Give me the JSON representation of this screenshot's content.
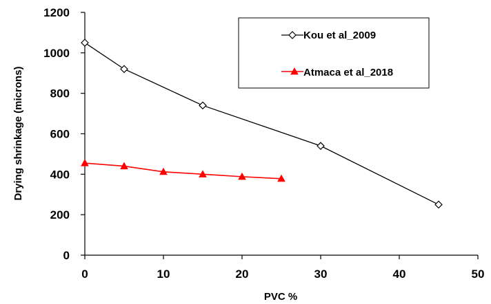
{
  "chart_data": {
    "type": "line",
    "title": "",
    "xlabel": "PVC %",
    "ylabel": "Drying shrinkage (microns)",
    "xlim": [
      0,
      50
    ],
    "ylim": [
      0,
      1200
    ],
    "xticks": [
      0,
      10,
      20,
      30,
      40,
      50
    ],
    "yticks": [
      0,
      200,
      400,
      600,
      800,
      1000,
      1200
    ],
    "xtick_labels": [
      "0",
      "10",
      "20",
      "30",
      "40",
      "50"
    ],
    "ytick_labels": [
      "0",
      "200",
      "400",
      "600",
      "800",
      "1000",
      "1200"
    ],
    "grid": false,
    "legend": "top-right",
    "series": [
      {
        "name": "Kou et al_2009",
        "color": "#000000",
        "marker": "open-diamond",
        "x": [
          0,
          5,
          15,
          30,
          45
        ],
        "y": [
          1050,
          920,
          740,
          540,
          250
        ]
      },
      {
        "name": "Atmaca et al_2018",
        "color": "#ff0000",
        "marker": "filled-triangle",
        "x": [
          0,
          5,
          10,
          15,
          20,
          25
        ],
        "y": [
          455,
          440,
          412,
          400,
          388,
          378
        ]
      }
    ]
  }
}
